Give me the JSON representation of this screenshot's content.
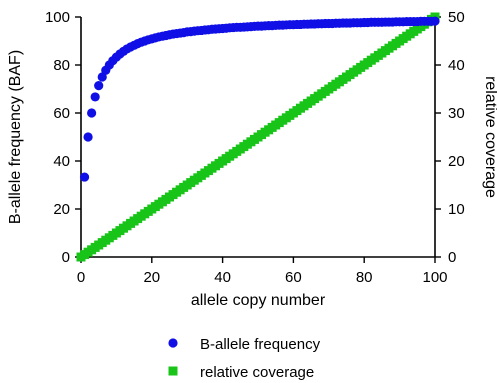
{
  "chart_data": {
    "type": "scatter",
    "title": "",
    "xlabel": "allele copy number",
    "ylabel": "B-allele frequency (BAF)",
    "y2label": "relative coverage",
    "xlim": [
      0,
      100
    ],
    "ylim": [
      0,
      100
    ],
    "y2lim": [
      0,
      50
    ],
    "xticks": [
      0,
      20,
      40,
      60,
      80,
      100
    ],
    "yticks": [
      0,
      20,
      40,
      60,
      80,
      100
    ],
    "y2ticks": [
      0,
      10,
      20,
      30,
      40,
      50
    ],
    "grid": false,
    "legend_position": "bottom-center",
    "series": [
      {
        "name": "B-allele frequency",
        "axis": "left",
        "marker": "circle",
        "color": "#1010e6",
        "x": [
          1,
          2,
          3,
          4,
          5,
          6,
          7,
          8,
          9,
          10,
          11,
          12,
          13,
          14,
          15,
          16,
          17,
          18,
          19,
          20,
          21,
          22,
          23,
          24,
          25,
          26,
          27,
          28,
          29,
          30,
          31,
          32,
          33,
          34,
          35,
          36,
          37,
          38,
          39,
          40,
          41,
          42,
          43,
          44,
          45,
          46,
          47,
          48,
          49,
          50,
          51,
          52,
          53,
          54,
          55,
          56,
          57,
          58,
          59,
          60,
          61,
          62,
          63,
          64,
          65,
          66,
          67,
          68,
          69,
          70,
          71,
          72,
          73,
          74,
          75,
          76,
          77,
          78,
          79,
          80,
          81,
          82,
          83,
          84,
          85,
          86,
          87,
          88,
          89,
          90,
          91,
          92,
          93,
          94,
          95,
          96,
          97,
          98,
          99,
          100
        ],
        "y": [
          33.3,
          50,
          60,
          66.7,
          71.4,
          75,
          77.8,
          80,
          81.8,
          83.3,
          84.6,
          85.7,
          86.7,
          87.5,
          88.2,
          88.9,
          89.5,
          90,
          90.5,
          90.9,
          91.3,
          91.7,
          92,
          92.3,
          92.6,
          92.9,
          93.1,
          93.3,
          93.5,
          93.8,
          93.9,
          94.1,
          94.3,
          94.4,
          94.6,
          94.7,
          94.9,
          95,
          95.1,
          95.2,
          95.3,
          95.5,
          95.6,
          95.7,
          95.7,
          95.8,
          95.9,
          96,
          96.1,
          96.2,
          96.2,
          96.3,
          96.4,
          96.4,
          96.5,
          96.6,
          96.6,
          96.7,
          96.8,
          96.8,
          96.9,
          96.9,
          97,
          97,
          97.1,
          97.1,
          97.2,
          97.2,
          97.3,
          97.3,
          97.3,
          97.4,
          97.4,
          97.5,
          97.5,
          97.5,
          97.6,
          97.6,
          97.6,
          97.7,
          97.7,
          97.8,
          97.8,
          97.8,
          97.8,
          97.9,
          97.9,
          97.9,
          98,
          98,
          98,
          98.1,
          98.1,
          98.1,
          98.1,
          98.2,
          98.2,
          98.2,
          98.2,
          98.3
        ]
      },
      {
        "name": "relative coverage",
        "axis": "right",
        "marker": "square",
        "color": "#18c418",
        "x": [
          0,
          1,
          2,
          3,
          4,
          5,
          6,
          7,
          8,
          9,
          10,
          11,
          12,
          13,
          14,
          15,
          16,
          17,
          18,
          19,
          20,
          21,
          22,
          23,
          24,
          25,
          26,
          27,
          28,
          29,
          30,
          31,
          32,
          33,
          34,
          35,
          36,
          37,
          38,
          39,
          40,
          41,
          42,
          43,
          44,
          45,
          46,
          47,
          48,
          49,
          50,
          51,
          52,
          53,
          54,
          55,
          56,
          57,
          58,
          59,
          60,
          61,
          62,
          63,
          64,
          65,
          66,
          67,
          68,
          69,
          70,
          71,
          72,
          73,
          74,
          75,
          76,
          77,
          78,
          79,
          80,
          81,
          82,
          83,
          84,
          85,
          86,
          87,
          88,
          89,
          90,
          91,
          92,
          93,
          94,
          95,
          96,
          97,
          98,
          99,
          100
        ],
        "y": [
          0,
          0.5,
          1,
          1.5,
          2,
          2.5,
          3,
          3.5,
          4,
          4.5,
          5,
          5.5,
          6,
          6.5,
          7,
          7.5,
          8,
          8.5,
          9,
          9.5,
          10,
          10.5,
          11,
          11.5,
          12,
          12.5,
          13,
          13.5,
          14,
          14.5,
          15,
          15.5,
          16,
          16.5,
          17,
          17.5,
          18,
          18.5,
          19,
          19.5,
          20,
          20.5,
          21,
          21.5,
          22,
          22.5,
          23,
          23.5,
          24,
          24.5,
          25,
          25.5,
          26,
          26.5,
          27,
          27.5,
          28,
          28.5,
          29,
          29.5,
          30,
          30.5,
          31,
          31.5,
          32,
          32.5,
          33,
          33.5,
          34,
          34.5,
          35,
          35.5,
          36,
          36.5,
          37,
          37.5,
          38,
          38.5,
          39,
          39.5,
          40,
          40.5,
          41,
          41.5,
          42,
          42.5,
          43,
          43.5,
          44,
          44.5,
          45,
          45.5,
          46,
          46.5,
          47,
          47.5,
          48,
          48.5,
          49,
          49.5,
          50
        ]
      }
    ]
  }
}
